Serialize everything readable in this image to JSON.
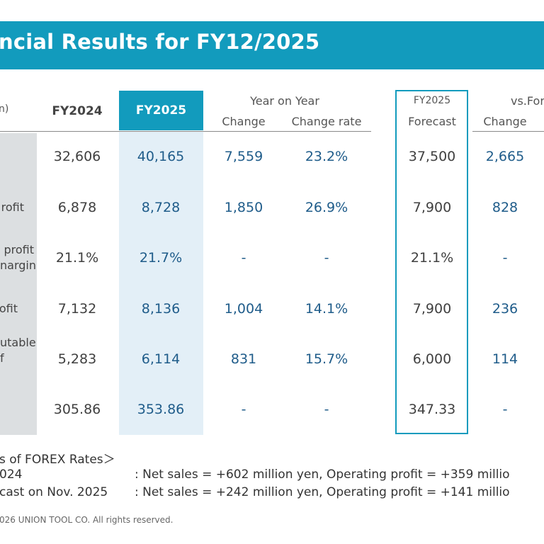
{
  "title": "ncial Results for FY12/2025",
  "header": {
    "unit": "n)",
    "fy2024": "FY2024",
    "fy2025": "FY2025",
    "yoy_group": "Year on Year",
    "change": "Change",
    "change_rate": "Change rate",
    "forecast_year": "FY2025",
    "forecast": "Forecast",
    "vs_forecast_group": "vs.For",
    "vs_change": "Change"
  },
  "rows": [
    {
      "label": "",
      "fy2024": "32,606",
      "fy2025": "40,165",
      "change": "7,559",
      "rate": "23.2%",
      "forecast": "37,500",
      "vs_change": "2,665"
    },
    {
      "label": "rofit",
      "fy2024": "6,878",
      "fy2025": "8,728",
      "change": "1,850",
      "rate": "26.9%",
      "forecast": "7,900",
      "vs_change": "828"
    },
    {
      "label": "profit\nnargin",
      "fy2024": "21.1%",
      "fy2025": "21.7%",
      "change": "-",
      "rate": "-",
      "forecast": "21.1%",
      "vs_change": "-"
    },
    {
      "label": "ofit",
      "fy2024": "7,132",
      "fy2025": "8,136",
      "change": "1,004",
      "rate": "14.1%",
      "forecast": "7,900",
      "vs_change": "236"
    },
    {
      "label": "utable\nf",
      "fy2024": "5,283",
      "fy2025": "6,114",
      "change": "831",
      "rate": "15.7%",
      "forecast": "6,000",
      "vs_change": "114"
    },
    {
      "label": "",
      "fy2024": "305.86",
      "fy2025": "353.86",
      "change": "-",
      "rate": "-",
      "forecast": "347.33",
      "vs_change": "-"
    }
  ],
  "forex": {
    "heading": "s of FOREX Rates＞",
    "lines": [
      {
        "left": "024",
        "right": ": Net sales = +602 million yen,  Operating profit = +359 millio"
      },
      {
        "left": "cast on Nov. 2025",
        "right": ": Net sales = +242 million yen,  Operating profit = +141 millio"
      }
    ]
  },
  "copyright": "026 UNION TOOL CO. All rights reserved.",
  "colors": {
    "accent": "#129bbd",
    "highlight": "#e3eff7",
    "label_bg": "#dcdfe1",
    "value_blue": "#1f5c8a"
  }
}
